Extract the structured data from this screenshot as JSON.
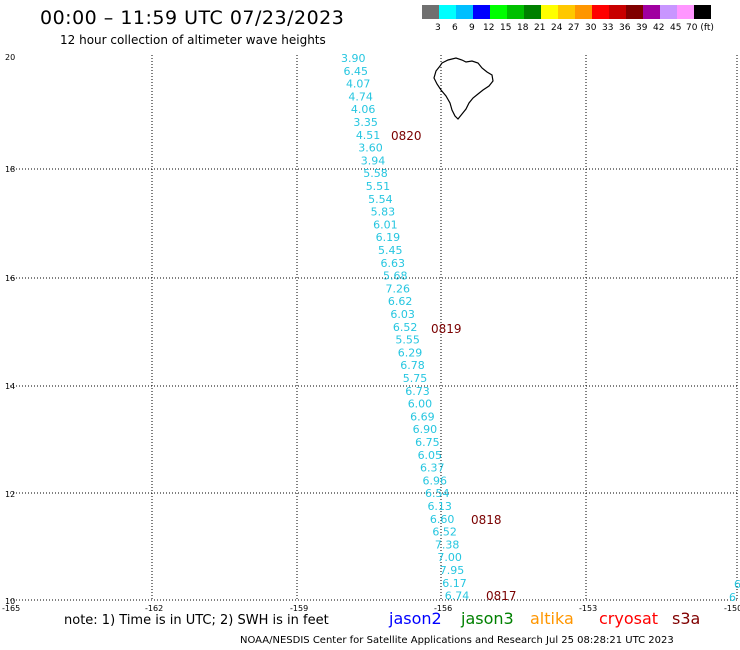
{
  "title": "00:00 – 11:59 UTC 07/23/2023",
  "subtitle": "12 hour collection of altimeter wave heights",
  "scale": {
    "labels": [
      "3",
      "6",
      "9",
      "12",
      "15",
      "18",
      "21",
      "24",
      "27",
      "30",
      "33",
      "36",
      "39",
      "42",
      "45",
      "70 (ft)"
    ],
    "colors": [
      "#707070",
      "#00ffff",
      "#00bfff",
      "#0000ff",
      "#00ff00",
      "#00c000",
      "#008000",
      "#ffff00",
      "#ffc800",
      "#ff9600",
      "#ff0000",
      "#c80000",
      "#800000",
      "#a000a0",
      "#c896ff",
      "#ff96ff",
      "#000000"
    ]
  },
  "axes": {
    "x_ticks": [
      "-165",
      "-162",
      "-159",
      "-156",
      "-153",
      "-150"
    ],
    "y_ticks": [
      "20",
      "18",
      "16",
      "14",
      "12",
      "10"
    ]
  },
  "track": {
    "swh_values": [
      "3.90",
      "6.45",
      "4.07",
      "4.74",
      "4.06",
      "3.35",
      "4.51",
      "3.60",
      "3.94",
      "5.58",
      "5.51",
      "5.54",
      "5.83",
      "6.01",
      "6.19",
      "5.45",
      "6.63",
      "5.68",
      "7.26",
      "6.62",
      "6.03",
      "6.52",
      "5.55",
      "6.29",
      "6.78",
      "5.75",
      "6.73",
      "6.00",
      "6.69",
      "6.90",
      "6.75",
      "6.05",
      "6.37",
      "6.96",
      "6.54",
      "6.13",
      "6.60",
      "6.52",
      "7.38",
      "7.00",
      "7.95",
      "6.17",
      "6.74"
    ],
    "pass_labels": [
      "0820",
      "0819",
      "0818",
      "0817"
    ]
  },
  "edge_values": [
    "6",
    "6"
  ],
  "note": "note:  1) Time is in UTC;  2) SWH is in feet",
  "satellites": [
    {
      "name": "jason2",
      "color": "#0000ff"
    },
    {
      "name": "jason3",
      "color": "#008000"
    },
    {
      "name": "altika",
      "color": "#ff9600"
    },
    {
      "name": "cryosat",
      "color": "#ff0000"
    },
    {
      "name": "s3a",
      "color": "#800000"
    }
  ],
  "credit": "NOAA/NESDIS Center for Satellite Applications and Research    Jul 25 08:28:21 UTC 2023"
}
